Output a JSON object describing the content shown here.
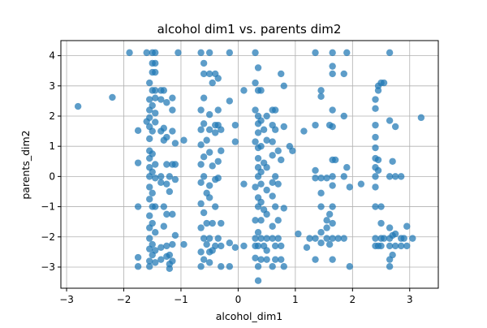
{
  "chart_data": {
    "type": "scatter",
    "title": "alcohol dim1 vs. parents dim2",
    "xlabel": "alcohol_dim1",
    "ylabel": "parents_dim2",
    "xlim": [
      -3.1,
      3.5
    ],
    "ylim": [
      -3.7,
      4.5
    ],
    "xticks": [
      -3,
      -2,
      -1,
      0,
      1,
      2,
      3
    ],
    "yticks": [
      -3,
      -2,
      -1,
      0,
      1,
      2,
      3,
      4
    ],
    "grid": true,
    "point_color": "#1f77b4",
    "points": [
      [
        -2.8,
        2.32
      ],
      [
        -2.2,
        2.62
      ],
      [
        -1.9,
        4.1
      ],
      [
        -1.75,
        1.52
      ],
      [
        -1.75,
        0.45
      ],
      [
        -1.75,
        -1.0
      ],
      [
        -1.75,
        -2.68
      ],
      [
        -1.75,
        -2.98
      ],
      [
        -1.6,
        4.1
      ],
      [
        -1.6,
        1.82
      ],
      [
        -1.55,
        3.1
      ],
      [
        -1.55,
        2.55
      ],
      [
        -1.55,
        2.2
      ],
      [
        -1.55,
        1.95
      ],
      [
        -1.55,
        1.65
      ],
      [
        -1.55,
        1.25
      ],
      [
        -1.55,
        0.85
      ],
      [
        -1.55,
        0.6
      ],
      [
        -1.55,
        0.3
      ],
      [
        -1.55,
        0.0
      ],
      [
        -1.55,
        -0.35
      ],
      [
        -1.55,
        -0.75
      ],
      [
        -1.55,
        -1.3
      ],
      [
        -1.55,
        -1.7
      ],
      [
        -1.55,
        -2.05
      ],
      [
        -1.55,
        -2.4
      ],
      [
        -1.55,
        -2.8
      ],
      [
        -1.55,
        -2.98
      ],
      [
        -1.5,
        4.1
      ],
      [
        -1.5,
        3.75
      ],
      [
        -1.5,
        3.45
      ],
      [
        -1.5,
        2.85
      ],
      [
        -1.5,
        2.35
      ],
      [
        -1.5,
        1.5
      ],
      [
        -1.5,
        0.75
      ],
      [
        -1.5,
        0.15
      ],
      [
        -1.5,
        -0.55
      ],
      [
        -1.5,
        -1.0
      ],
      [
        -1.5,
        -1.55
      ],
      [
        -1.5,
        -2.25
      ],
      [
        -1.5,
        -2.6
      ],
      [
        -1.45,
        4.1
      ],
      [
        -1.45,
        3.75
      ],
      [
        -1.45,
        3.45
      ],
      [
        -1.45,
        2.85
      ],
      [
        -1.45,
        2.6
      ],
      [
        -1.45,
        2.1
      ],
      [
        -1.45,
        1.8
      ],
      [
        -1.45,
        0.4
      ],
      [
        -1.45,
        -0.05
      ],
      [
        -1.45,
        -1.0
      ],
      [
        -1.45,
        -1.85
      ],
      [
        -1.45,
        -2.45
      ],
      [
        -1.45,
        -2.85
      ],
      [
        -1.35,
        2.85
      ],
      [
        -1.35,
        2.55
      ],
      [
        -1.35,
        1.5
      ],
      [
        -1.35,
        0.0
      ],
      [
        -1.35,
        -0.2
      ],
      [
        -1.35,
        -2.35
      ],
      [
        -1.35,
        -2.75
      ],
      [
        -1.3,
        2.85
      ],
      [
        -1.3,
        1.6
      ],
      [
        -1.3,
        1.2
      ],
      [
        -1.3,
        -1.0
      ],
      [
        -1.3,
        -1.65
      ],
      [
        -1.25,
        2.45
      ],
      [
        -1.25,
        1.3
      ],
      [
        -1.25,
        0.4
      ],
      [
        -1.25,
        -0.25
      ],
      [
        -1.25,
        -1.25
      ],
      [
        -1.25,
        -2.3
      ],
      [
        -1.25,
        -2.65
      ],
      [
        -1.2,
        0.0
      ],
      [
        -1.2,
        -0.5
      ],
      [
        -1.2,
        -2.6
      ],
      [
        -1.2,
        -2.9
      ],
      [
        -1.2,
        -3.05
      ],
      [
        -1.15,
        2.6
      ],
      [
        -1.15,
        2.2
      ],
      [
        -1.15,
        1.5
      ],
      [
        -1.15,
        0.4
      ],
      [
        -1.15,
        -1.25
      ],
      [
        -1.15,
        -2.25
      ],
      [
        -1.15,
        -2.8
      ],
      [
        -1.1,
        1.1
      ],
      [
        -1.1,
        0.4
      ],
      [
        -1.1,
        -0.1
      ],
      [
        -1.1,
        -1.95
      ],
      [
        -1.05,
        4.1
      ],
      [
        -0.95,
        1.2
      ],
      [
        -0.95,
        -2.25
      ],
      [
        -0.65,
        4.1
      ],
      [
        -0.65,
        2.2
      ],
      [
        -0.65,
        1.55
      ],
      [
        -0.65,
        1.05
      ],
      [
        -0.65,
        0.4
      ],
      [
        -0.65,
        -0.2
      ],
      [
        -0.65,
        -0.9
      ],
      [
        -0.65,
        -1.7
      ],
      [
        -0.65,
        -2.5
      ],
      [
        -0.65,
        -2.98
      ],
      [
        -0.6,
        3.75
      ],
      [
        -0.6,
        3.4
      ],
      [
        -0.6,
        2.6
      ],
      [
        -0.6,
        1.75
      ],
      [
        -0.6,
        0.65
      ],
      [
        -0.6,
        0.0
      ],
      [
        -0.6,
        -1.2
      ],
      [
        -0.6,
        -2.05
      ],
      [
        -0.6,
        -2.75
      ],
      [
        -0.55,
        1.2
      ],
      [
        -0.55,
        -0.55
      ],
      [
        -0.55,
        -1.55
      ],
      [
        -0.55,
        -2.25
      ],
      [
        -0.5,
        4.1
      ],
      [
        -0.5,
        3.4
      ],
      [
        -0.5,
        2.05
      ],
      [
        -0.5,
        1.55
      ],
      [
        -0.5,
        0.8
      ],
      [
        -0.5,
        -0.3
      ],
      [
        -0.5,
        -0.7
      ],
      [
        -0.5,
        -2.05
      ],
      [
        -0.5,
        -2.5
      ],
      [
        -0.5,
        -2.85
      ],
      [
        -0.45,
        3.1
      ],
      [
        -0.45,
        0.35
      ],
      [
        -0.45,
        -1.55
      ],
      [
        -0.45,
        -2.45
      ],
      [
        -0.4,
        3.4
      ],
      [
        -0.4,
        1.7
      ],
      [
        -0.4,
        1.45
      ],
      [
        -0.4,
        -0.1
      ],
      [
        -0.4,
        -1.0
      ],
      [
        -0.4,
        -2.3
      ],
      [
        -0.35,
        3.25
      ],
      [
        -0.35,
        2.2
      ],
      [
        -0.35,
        1.7
      ],
      [
        -0.35,
        0.5
      ],
      [
        -0.35,
        -0.05
      ],
      [
        -0.35,
        -2.05
      ],
      [
        -0.3,
        1.55
      ],
      [
        -0.3,
        0.85
      ],
      [
        -0.3,
        -1.55
      ],
      [
        -0.3,
        -2.3
      ],
      [
        -0.3,
        -2.98
      ],
      [
        -0.15,
        4.1
      ],
      [
        -0.15,
        2.5
      ],
      [
        -0.15,
        -2.2
      ],
      [
        -0.15,
        -2.98
      ],
      [
        -0.05,
        1.7
      ],
      [
        -0.05,
        1.15
      ],
      [
        -0.05,
        -2.35
      ],
      [
        0.1,
        2.85
      ],
      [
        0.1,
        -0.25
      ],
      [
        0.1,
        -2.3
      ],
      [
        0.3,
        4.1
      ],
      [
        0.3,
        3.1
      ],
      [
        0.3,
        2.2
      ],
      [
        0.3,
        1.15
      ],
      [
        0.3,
        -0.35
      ],
      [
        0.3,
        -1.45
      ],
      [
        0.3,
        -2.05
      ],
      [
        0.3,
        -2.3
      ],
      [
        0.3,
        -2.7
      ],
      [
        0.35,
        3.6
      ],
      [
        0.35,
        2.85
      ],
      [
        0.35,
        2.0
      ],
      [
        0.35,
        1.75
      ],
      [
        0.35,
        1.45
      ],
      [
        0.35,
        0.95
      ],
      [
        0.35,
        0.6
      ],
      [
        0.35,
        0.3
      ],
      [
        0.35,
        0.0
      ],
      [
        0.35,
        -0.7
      ],
      [
        0.35,
        -1.0
      ],
      [
        0.35,
        -1.85
      ],
      [
        0.35,
        -2.3
      ],
      [
        0.35,
        -2.98
      ],
      [
        0.35,
        -3.45
      ],
      [
        0.4,
        2.85
      ],
      [
        0.4,
        1.85
      ],
      [
        0.4,
        1.0
      ],
      [
        0.4,
        0.15
      ],
      [
        0.4,
        -0.25
      ],
      [
        0.4,
        -0.85
      ],
      [
        0.4,
        -1.45
      ],
      [
        0.4,
        -2.05
      ],
      [
        0.4,
        -2.75
      ],
      [
        0.45,
        1.55
      ],
      [
        0.45,
        0.45
      ],
      [
        0.45,
        -1.1
      ],
      [
        0.45,
        -2.3
      ],
      [
        0.5,
        2.0
      ],
      [
        0.5,
        1.2
      ],
      [
        0.5,
        0.3
      ],
      [
        0.5,
        -0.45
      ],
      [
        0.5,
        -1.25
      ],
      [
        0.5,
        -2.05
      ],
      [
        0.5,
        -2.45
      ],
      [
        0.5,
        -2.75
      ],
      [
        0.6,
        2.2
      ],
      [
        0.6,
        1.7
      ],
      [
        0.6,
        1.15
      ],
      [
        0.6,
        0.7
      ],
      [
        0.6,
        -0.2
      ],
      [
        0.6,
        -0.65
      ],
      [
        0.6,
        -1.65
      ],
      [
        0.6,
        -2.05
      ],
      [
        0.6,
        -2.98
      ],
      [
        0.65,
        2.2
      ],
      [
        0.65,
        1.55
      ],
      [
        0.65,
        0.0
      ],
      [
        0.65,
        -1.0
      ],
      [
        0.65,
        -2.3
      ],
      [
        0.65,
        -2.75
      ],
      [
        0.7,
        0.85
      ],
      [
        0.7,
        -0.25
      ],
      [
        0.7,
        -1.45
      ],
      [
        0.7,
        -2.05
      ],
      [
        0.75,
        3.4
      ],
      [
        0.75,
        0.55
      ],
      [
        0.75,
        -2.3
      ],
      [
        0.75,
        -2.75
      ],
      [
        0.8,
        3.0
      ],
      [
        0.8,
        1.65
      ],
      [
        0.8,
        -1.05
      ],
      [
        0.8,
        -2.98
      ],
      [
        0.9,
        1.0
      ],
      [
        0.95,
        0.85
      ],
      [
        1.05,
        -1.9
      ],
      [
        1.15,
        1.5
      ],
      [
        1.2,
        -2.35
      ],
      [
        1.25,
        -2.05
      ],
      [
        1.35,
        4.1
      ],
      [
        1.35,
        1.7
      ],
      [
        1.35,
        0.2
      ],
      [
        1.35,
        -0.05
      ],
      [
        1.35,
        -2.05
      ],
      [
        1.35,
        -2.75
      ],
      [
        1.45,
        2.85
      ],
      [
        1.45,
        2.65
      ],
      [
        1.45,
        -0.05
      ],
      [
        1.45,
        -0.55
      ],
      [
        1.45,
        -1.0
      ],
      [
        1.45,
        -1.85
      ],
      [
        1.45,
        -2.2
      ],
      [
        1.55,
        -2.05
      ],
      [
        1.55,
        -1.7
      ],
      [
        1.55,
        -1.45
      ],
      [
        1.55,
        -0.05
      ],
      [
        1.6,
        1.7
      ],
      [
        1.6,
        -2.25
      ],
      [
        1.6,
        -1.25
      ],
      [
        1.65,
        4.1
      ],
      [
        1.65,
        3.65
      ],
      [
        1.65,
        3.4
      ],
      [
        1.65,
        2.2
      ],
      [
        1.65,
        1.65
      ],
      [
        1.65,
        0.55
      ],
      [
        1.65,
        0.0
      ],
      [
        1.65,
        -0.3
      ],
      [
        1.65,
        -1.0
      ],
      [
        1.65,
        -1.55
      ],
      [
        1.65,
        -2.05
      ],
      [
        1.65,
        -2.75
      ],
      [
        1.7,
        0.55
      ],
      [
        1.75,
        -2.05
      ],
      [
        1.85,
        3.4
      ],
      [
        1.85,
        2.0
      ],
      [
        1.85,
        0.0
      ],
      [
        1.85,
        -2.05
      ],
      [
        1.9,
        4.1
      ],
      [
        1.9,
        0.3
      ],
      [
        1.95,
        -0.35
      ],
      [
        1.95,
        -2.98
      ],
      [
        2.15,
        -0.25
      ],
      [
        2.4,
        2.55
      ],
      [
        2.4,
        2.25
      ],
      [
        2.4,
        1.7
      ],
      [
        2.4,
        1.3
      ],
      [
        2.4,
        0.95
      ],
      [
        2.4,
        0.6
      ],
      [
        2.4,
        0.3
      ],
      [
        2.4,
        0.0
      ],
      [
        2.4,
        -0.35
      ],
      [
        2.4,
        -1.0
      ],
      [
        2.4,
        -2.05
      ],
      [
        2.4,
        -2.3
      ],
      [
        2.45,
        3.0
      ],
      [
        2.45,
        2.85
      ],
      [
        2.45,
        0.55
      ],
      [
        2.45,
        0.2
      ],
      [
        2.45,
        -2.3
      ],
      [
        2.5,
        3.1
      ],
      [
        2.5,
        -1.0
      ],
      [
        2.5,
        -1.55
      ],
      [
        2.5,
        -2.05
      ],
      [
        2.5,
        -2.3
      ],
      [
        2.55,
        3.1
      ],
      [
        2.55,
        -2.05
      ],
      [
        2.65,
        4.1
      ],
      [
        2.65,
        1.85
      ],
      [
        2.65,
        0.0
      ],
      [
        2.65,
        -1.7
      ],
      [
        2.65,
        -2.05
      ],
      [
        2.65,
        -2.3
      ],
      [
        2.65,
        -2.75
      ],
      [
        2.65,
        -2.98
      ],
      [
        2.7,
        0.5
      ],
      [
        2.7,
        -1.95
      ],
      [
        2.7,
        -2.6
      ],
      [
        2.75,
        1.65
      ],
      [
        2.75,
        0.0
      ],
      [
        2.75,
        -1.9
      ],
      [
        2.75,
        -2.3
      ],
      [
        2.85,
        0.0
      ],
      [
        2.85,
        -2.05
      ],
      [
        2.85,
        -2.3
      ],
      [
        2.9,
        -2.05
      ],
      [
        2.95,
        -1.65
      ],
      [
        2.95,
        -2.3
      ],
      [
        3.05,
        -2.05
      ],
      [
        3.2,
        1.95
      ]
    ]
  }
}
